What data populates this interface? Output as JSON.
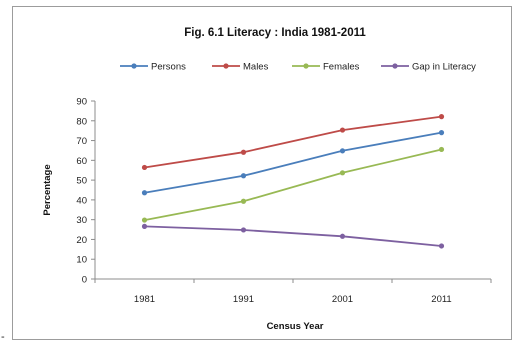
{
  "chart_data": {
    "type": "line",
    "title": "Fig. 6.1  Literacy : India 1981-2011",
    "xlabel": "Census Year",
    "ylabel": "Percentage",
    "categories": [
      "1981",
      "1991",
      "2001",
      "2011"
    ],
    "ylim": [
      0,
      90
    ],
    "yticks": [
      0,
      10,
      20,
      30,
      40,
      50,
      60,
      70,
      80,
      90
    ],
    "grid": false,
    "legend_position": "top",
    "series": [
      {
        "name": "Persons",
        "color": "#4a7ebb",
        "values": [
          43.6,
          52.2,
          64.8,
          74.0
        ]
      },
      {
        "name": "Males",
        "color": "#be4b48",
        "values": [
          56.4,
          64.1,
          75.3,
          82.1
        ]
      },
      {
        "name": "Females",
        "color": "#98b954",
        "values": [
          29.8,
          39.3,
          53.7,
          65.5
        ]
      },
      {
        "name": "Gap in Literacy",
        "color": "#7d60a0",
        "values": [
          26.6,
          24.8,
          21.6,
          16.7
        ]
      }
    ]
  },
  "page": {
    "stray_mark": "-"
  }
}
